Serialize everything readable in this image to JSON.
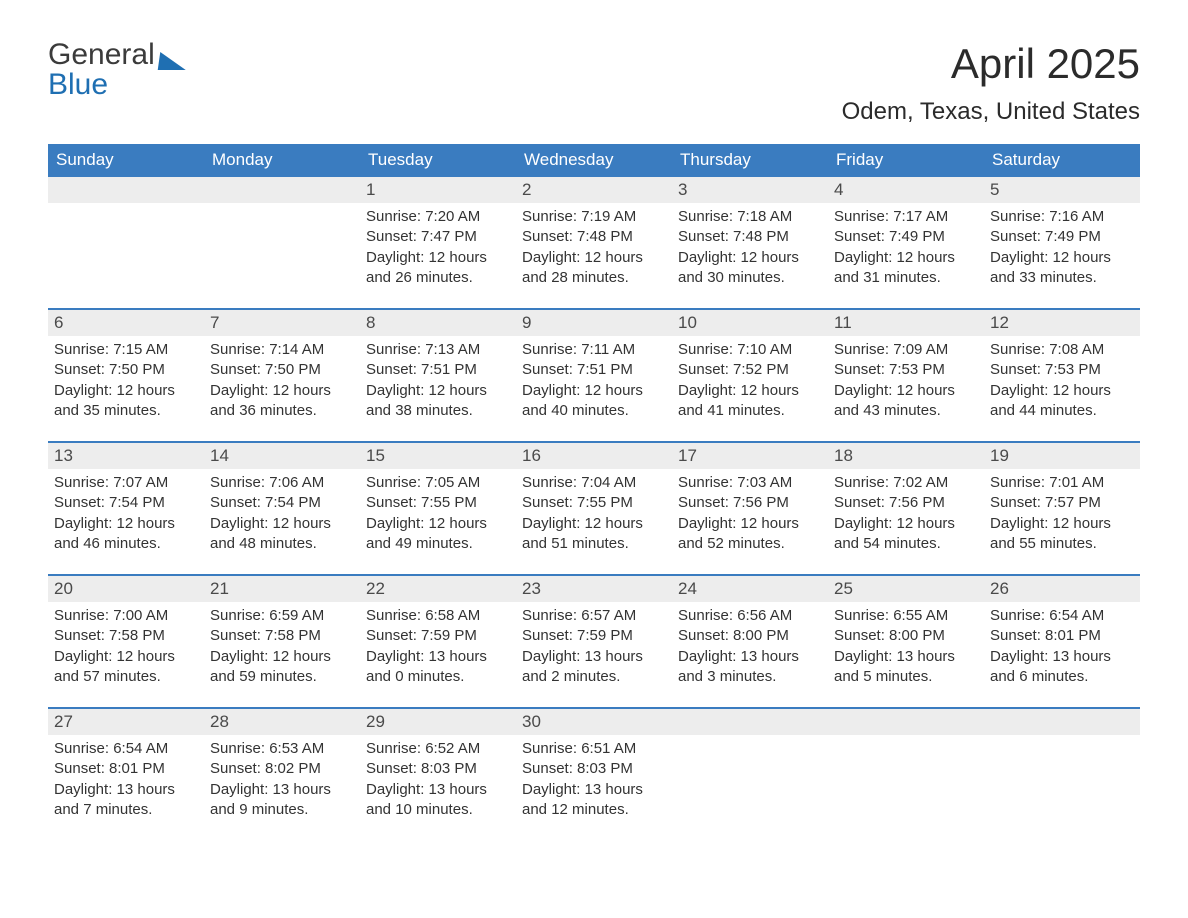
{
  "logo": {
    "word1": "General",
    "word2": "Blue"
  },
  "title": {
    "month": "April 2025",
    "location": "Odem, Texas, United States"
  },
  "colors": {
    "header_bg": "#3a7cc0",
    "header_text": "#ffffff",
    "daynum_bg": "#ededed",
    "body_text": "#333333",
    "rule": "#3a7cc0",
    "logo_blue": "#1f6fb2",
    "page_bg": "#ffffff"
  },
  "typography": {
    "title_fontsize_pt": 32,
    "location_fontsize_pt": 18,
    "dow_fontsize_pt": 13,
    "body_fontsize_pt": 11
  },
  "days_of_week": [
    "Sunday",
    "Monday",
    "Tuesday",
    "Wednesday",
    "Thursday",
    "Friday",
    "Saturday"
  ],
  "weeks": [
    [
      null,
      null,
      {
        "n": "1",
        "sunrise": "7:20 AM",
        "sunset": "7:47 PM",
        "dl_h": 12,
        "dl_m": 26
      },
      {
        "n": "2",
        "sunrise": "7:19 AM",
        "sunset": "7:48 PM",
        "dl_h": 12,
        "dl_m": 28
      },
      {
        "n": "3",
        "sunrise": "7:18 AM",
        "sunset": "7:48 PM",
        "dl_h": 12,
        "dl_m": 30
      },
      {
        "n": "4",
        "sunrise": "7:17 AM",
        "sunset": "7:49 PM",
        "dl_h": 12,
        "dl_m": 31
      },
      {
        "n": "5",
        "sunrise": "7:16 AM",
        "sunset": "7:49 PM",
        "dl_h": 12,
        "dl_m": 33
      }
    ],
    [
      {
        "n": "6",
        "sunrise": "7:15 AM",
        "sunset": "7:50 PM",
        "dl_h": 12,
        "dl_m": 35
      },
      {
        "n": "7",
        "sunrise": "7:14 AM",
        "sunset": "7:50 PM",
        "dl_h": 12,
        "dl_m": 36
      },
      {
        "n": "8",
        "sunrise": "7:13 AM",
        "sunset": "7:51 PM",
        "dl_h": 12,
        "dl_m": 38
      },
      {
        "n": "9",
        "sunrise": "7:11 AM",
        "sunset": "7:51 PM",
        "dl_h": 12,
        "dl_m": 40
      },
      {
        "n": "10",
        "sunrise": "7:10 AM",
        "sunset": "7:52 PM",
        "dl_h": 12,
        "dl_m": 41
      },
      {
        "n": "11",
        "sunrise": "7:09 AM",
        "sunset": "7:53 PM",
        "dl_h": 12,
        "dl_m": 43
      },
      {
        "n": "12",
        "sunrise": "7:08 AM",
        "sunset": "7:53 PM",
        "dl_h": 12,
        "dl_m": 44
      }
    ],
    [
      {
        "n": "13",
        "sunrise": "7:07 AM",
        "sunset": "7:54 PM",
        "dl_h": 12,
        "dl_m": 46
      },
      {
        "n": "14",
        "sunrise": "7:06 AM",
        "sunset": "7:54 PM",
        "dl_h": 12,
        "dl_m": 48
      },
      {
        "n": "15",
        "sunrise": "7:05 AM",
        "sunset": "7:55 PM",
        "dl_h": 12,
        "dl_m": 49
      },
      {
        "n": "16",
        "sunrise": "7:04 AM",
        "sunset": "7:55 PM",
        "dl_h": 12,
        "dl_m": 51
      },
      {
        "n": "17",
        "sunrise": "7:03 AM",
        "sunset": "7:56 PM",
        "dl_h": 12,
        "dl_m": 52
      },
      {
        "n": "18",
        "sunrise": "7:02 AM",
        "sunset": "7:56 PM",
        "dl_h": 12,
        "dl_m": 54
      },
      {
        "n": "19",
        "sunrise": "7:01 AM",
        "sunset": "7:57 PM",
        "dl_h": 12,
        "dl_m": 55
      }
    ],
    [
      {
        "n": "20",
        "sunrise": "7:00 AM",
        "sunset": "7:58 PM",
        "dl_h": 12,
        "dl_m": 57
      },
      {
        "n": "21",
        "sunrise": "6:59 AM",
        "sunset": "7:58 PM",
        "dl_h": 12,
        "dl_m": 59
      },
      {
        "n": "22",
        "sunrise": "6:58 AM",
        "sunset": "7:59 PM",
        "dl_h": 13,
        "dl_m": 0
      },
      {
        "n": "23",
        "sunrise": "6:57 AM",
        "sunset": "7:59 PM",
        "dl_h": 13,
        "dl_m": 2
      },
      {
        "n": "24",
        "sunrise": "6:56 AM",
        "sunset": "8:00 PM",
        "dl_h": 13,
        "dl_m": 3
      },
      {
        "n": "25",
        "sunrise": "6:55 AM",
        "sunset": "8:00 PM",
        "dl_h": 13,
        "dl_m": 5
      },
      {
        "n": "26",
        "sunrise": "6:54 AM",
        "sunset": "8:01 PM",
        "dl_h": 13,
        "dl_m": 6
      }
    ],
    [
      {
        "n": "27",
        "sunrise": "6:54 AM",
        "sunset": "8:01 PM",
        "dl_h": 13,
        "dl_m": 7
      },
      {
        "n": "28",
        "sunrise": "6:53 AM",
        "sunset": "8:02 PM",
        "dl_h": 13,
        "dl_m": 9
      },
      {
        "n": "29",
        "sunrise": "6:52 AM",
        "sunset": "8:03 PM",
        "dl_h": 13,
        "dl_m": 10
      },
      {
        "n": "30",
        "sunrise": "6:51 AM",
        "sunset": "8:03 PM",
        "dl_h": 13,
        "dl_m": 12
      },
      null,
      null,
      null
    ]
  ],
  "labels": {
    "sunrise_prefix": "Sunrise: ",
    "sunset_prefix": "Sunset: ",
    "daylight_prefix": "Daylight: ",
    "hours_word": " hours",
    "and_word": "and ",
    "minutes_word": " minutes."
  }
}
